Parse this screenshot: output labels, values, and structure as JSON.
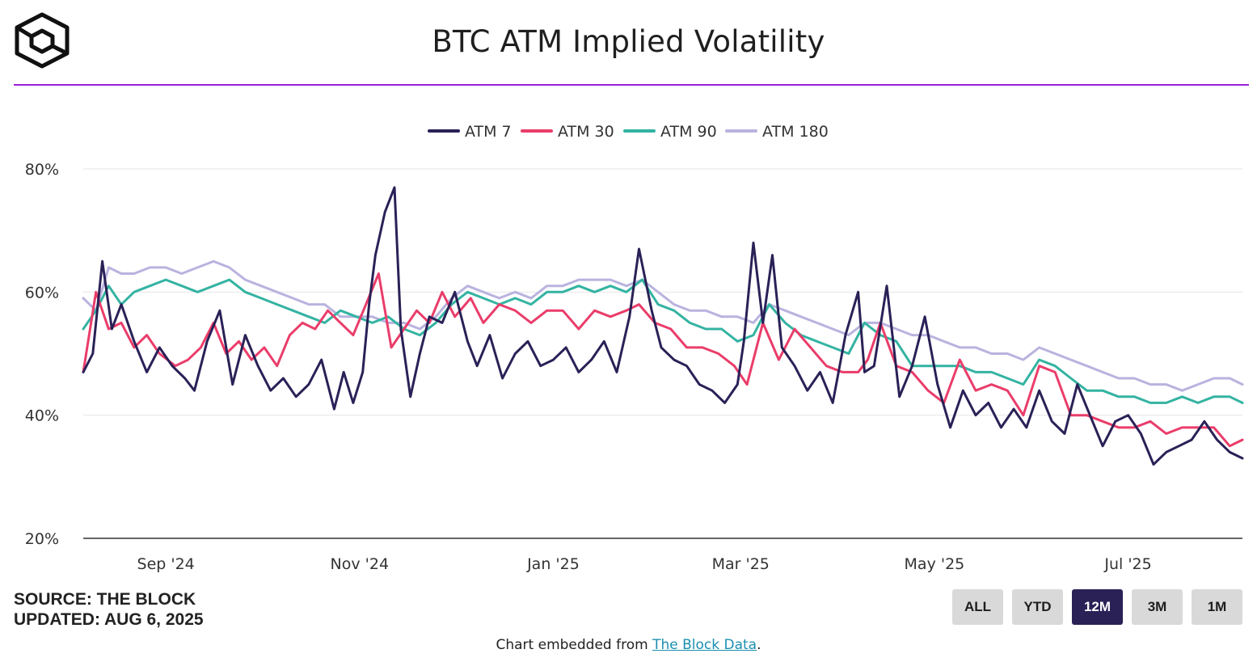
{
  "header": {
    "title": "BTC ATM Implied Volatility"
  },
  "footer": {
    "source": "SOURCE: THE BLOCK",
    "updated": "UPDATED: AUG 6, 2025",
    "embed_prefix": "Chart embedded from ",
    "embed_link": "The Block Data",
    "embed_suffix": "."
  },
  "range_buttons": [
    {
      "label": "ALL",
      "active": false
    },
    {
      "label": "YTD",
      "active": false
    },
    {
      "label": "12M",
      "active": true
    },
    {
      "label": "3M",
      "active": false
    },
    {
      "label": "1M",
      "active": false
    }
  ],
  "colors": {
    "brand_rule": "#9c1fd6",
    "active_button": "#2a2157"
  },
  "chart_data": {
    "type": "line",
    "title": "BTC ATM Implied Volatility",
    "xlabel": "",
    "ylabel": "",
    "ylim": [
      20,
      80
    ],
    "y_ticks": [
      "20%",
      "40%",
      "60%",
      "80%"
    ],
    "y_tick_values": [
      20,
      40,
      60,
      80
    ],
    "x_start": "2024-08-06",
    "x_end": "2025-08-06",
    "x_tick_labels": [
      "Sep '24",
      "Nov '24",
      "Jan '25",
      "Mar '25",
      "May '25",
      "Jul '25"
    ],
    "x_tick_dates": [
      "2024-09-01",
      "2024-11-01",
      "2025-01-01",
      "2025-03-01",
      "2025-05-01",
      "2025-07-01"
    ],
    "legend_position": "top-center",
    "grid": true,
    "series": [
      {
        "name": "ATM 7",
        "color": "#2a2157",
        "dates": [
          "2024-08-06",
          "2024-08-09",
          "2024-08-12",
          "2024-08-15",
          "2024-08-18",
          "2024-08-22",
          "2024-08-26",
          "2024-08-30",
          "2024-09-03",
          "2024-09-07",
          "2024-09-10",
          "2024-09-14",
          "2024-09-18",
          "2024-09-22",
          "2024-09-26",
          "2024-09-30",
          "2024-10-04",
          "2024-10-08",
          "2024-10-12",
          "2024-10-16",
          "2024-10-20",
          "2024-10-24",
          "2024-10-27",
          "2024-10-30",
          "2024-11-02",
          "2024-11-04",
          "2024-11-06",
          "2024-11-09",
          "2024-11-12",
          "2024-11-14",
          "2024-11-17",
          "2024-11-20",
          "2024-11-23",
          "2024-11-27",
          "2024-12-01",
          "2024-12-05",
          "2024-12-08",
          "2024-12-12",
          "2024-12-16",
          "2024-12-20",
          "2024-12-24",
          "2024-12-28",
          "2025-01-01",
          "2025-01-05",
          "2025-01-09",
          "2025-01-13",
          "2025-01-17",
          "2025-01-21",
          "2025-01-25",
          "2025-01-28",
          "2025-02-01",
          "2025-02-04",
          "2025-02-08",
          "2025-02-12",
          "2025-02-16",
          "2025-02-20",
          "2025-02-24",
          "2025-02-28",
          "2025-03-02",
          "2025-03-05",
          "2025-03-08",
          "2025-03-11",
          "2025-03-14",
          "2025-03-18",
          "2025-03-22",
          "2025-03-26",
          "2025-03-30",
          "2025-04-03",
          "2025-04-07",
          "2025-04-09",
          "2025-04-12",
          "2025-04-16",
          "2025-04-20",
          "2025-04-24",
          "2025-04-28",
          "2025-05-02",
          "2025-05-06",
          "2025-05-10",
          "2025-05-14",
          "2025-05-18",
          "2025-05-22",
          "2025-05-26",
          "2025-05-30",
          "2025-06-03",
          "2025-06-07",
          "2025-06-11",
          "2025-06-15",
          "2025-06-19",
          "2025-06-23",
          "2025-06-27",
          "2025-07-01",
          "2025-07-05",
          "2025-07-09",
          "2025-07-13",
          "2025-07-17",
          "2025-07-21",
          "2025-07-25",
          "2025-07-29",
          "2025-08-02",
          "2025-08-06"
        ],
        "values": [
          47,
          50,
          65,
          54,
          58,
          52,
          47,
          51,
          48,
          46,
          44,
          52,
          57,
          45,
          53,
          48,
          44,
          46,
          43,
          45,
          49,
          41,
          47,
          42,
          47,
          58,
          66,
          73,
          77,
          54,
          43,
          50,
          56,
          55,
          60,
          52,
          48,
          53,
          46,
          50,
          52,
          48,
          49,
          51,
          47,
          49,
          52,
          47,
          56,
          67,
          57,
          51,
          49,
          48,
          45,
          44,
          42,
          45,
          52,
          68,
          55,
          66,
          51,
          48,
          44,
          47,
          42,
          53,
          60,
          47,
          48,
          61,
          43,
          48,
          56,
          45,
          38,
          44,
          40,
          42,
          38,
          41,
          38,
          44,
          39,
          37,
          45,
          40,
          35,
          39,
          40,
          37,
          32,
          34,
          35,
          36,
          39,
          36,
          34,
          33
        ]
      },
      {
        "name": "ATM 30",
        "color": "#ea3d6a",
        "dates": [
          "2024-08-06",
          "2024-08-10",
          "2024-08-14",
          "2024-08-18",
          "2024-08-22",
          "2024-08-26",
          "2024-08-30",
          "2024-09-04",
          "2024-09-08",
          "2024-09-12",
          "2024-09-16",
          "2024-09-20",
          "2024-09-24",
          "2024-09-28",
          "2024-10-02",
          "2024-10-06",
          "2024-10-10",
          "2024-10-14",
          "2024-10-18",
          "2024-10-22",
          "2024-10-26",
          "2024-10-30",
          "2024-11-03",
          "2024-11-07",
          "2024-11-11",
          "2024-11-15",
          "2024-11-19",
          "2024-11-23",
          "2024-11-27",
          "2024-12-01",
          "2024-12-06",
          "2024-12-10",
          "2024-12-15",
          "2024-12-20",
          "2024-12-25",
          "2024-12-30",
          "2025-01-04",
          "2025-01-09",
          "2025-01-14",
          "2025-01-19",
          "2025-01-24",
          "2025-01-28",
          "2025-02-02",
          "2025-02-07",
          "2025-02-12",
          "2025-02-17",
          "2025-02-22",
          "2025-02-27",
          "2025-03-03",
          "2025-03-08",
          "2025-03-13",
          "2025-03-18",
          "2025-03-23",
          "2025-03-28",
          "2025-04-02",
          "2025-04-07",
          "2025-04-10",
          "2025-04-14",
          "2025-04-19",
          "2025-04-24",
          "2025-04-29",
          "2025-05-04",
          "2025-05-09",
          "2025-05-14",
          "2025-05-19",
          "2025-05-24",
          "2025-05-29",
          "2025-06-03",
          "2025-06-08",
          "2025-06-13",
          "2025-06-18",
          "2025-06-23",
          "2025-06-28",
          "2025-07-03",
          "2025-07-08",
          "2025-07-13",
          "2025-07-18",
          "2025-07-23",
          "2025-07-28",
          "2025-08-02",
          "2025-08-06"
        ],
        "values": [
          47,
          60,
          54,
          55,
          51,
          53,
          50,
          48,
          49,
          51,
          55,
          50,
          52,
          49,
          51,
          48,
          53,
          55,
          54,
          57,
          55,
          53,
          58,
          63,
          51,
          54,
          57,
          55,
          60,
          56,
          59,
          55,
          58,
          57,
          55,
          57,
          57,
          54,
          57,
          56,
          57,
          58,
          55,
          54,
          51,
          51,
          50,
          48,
          45,
          55,
          49,
          54,
          51,
          48,
          47,
          47,
          49,
          55,
          48,
          47,
          44,
          42,
          49,
          44,
          45,
          44,
          40,
          48,
          47,
          40,
          40,
          39,
          38,
          38,
          39,
          37,
          38,
          38,
          38,
          35,
          36
        ]
      },
      {
        "name": "ATM 90",
        "color": "#34b3a2",
        "dates": [
          "2024-08-06",
          "2024-08-10",
          "2024-08-14",
          "2024-08-18",
          "2024-08-22",
          "2024-08-27",
          "2024-09-01",
          "2024-09-06",
          "2024-09-11",
          "2024-09-16",
          "2024-09-21",
          "2024-09-26",
          "2024-10-01",
          "2024-10-06",
          "2024-10-11",
          "2024-10-16",
          "2024-10-21",
          "2024-10-26",
          "2024-10-31",
          "2024-11-05",
          "2024-11-10",
          "2024-11-15",
          "2024-11-20",
          "2024-11-25",
          "2024-11-30",
          "2024-12-05",
          "2024-12-10",
          "2024-12-15",
          "2024-12-20",
          "2024-12-25",
          "2024-12-30",
          "2025-01-04",
          "2025-01-09",
          "2025-01-14",
          "2025-01-19",
          "2025-01-24",
          "2025-01-29",
          "2025-02-03",
          "2025-02-08",
          "2025-02-13",
          "2025-02-18",
          "2025-02-23",
          "2025-02-28",
          "2025-03-05",
          "2025-03-10",
          "2025-03-15",
          "2025-03-20",
          "2025-03-25",
          "2025-03-30",
          "2025-04-04",
          "2025-04-09",
          "2025-04-14",
          "2025-04-19",
          "2025-04-24",
          "2025-04-29",
          "2025-05-04",
          "2025-05-09",
          "2025-05-14",
          "2025-05-19",
          "2025-05-24",
          "2025-05-29",
          "2025-06-03",
          "2025-06-08",
          "2025-06-13",
          "2025-06-18",
          "2025-06-23",
          "2025-06-28",
          "2025-07-03",
          "2025-07-08",
          "2025-07-13",
          "2025-07-18",
          "2025-07-23",
          "2025-07-28",
          "2025-08-02",
          "2025-08-06"
        ],
        "values": [
          54,
          57,
          61,
          58,
          60,
          61,
          62,
          61,
          60,
          61,
          62,
          60,
          59,
          58,
          57,
          56,
          55,
          57,
          56,
          55,
          56,
          54,
          53,
          55,
          58,
          60,
          59,
          58,
          59,
          58,
          60,
          60,
          61,
          60,
          61,
          60,
          62,
          58,
          57,
          55,
          54,
          54,
          52,
          53,
          58,
          55,
          53,
          52,
          51,
          50,
          55,
          53,
          52,
          48,
          48,
          48,
          48,
          47,
          47,
          46,
          45,
          49,
          48,
          46,
          44,
          44,
          43,
          43,
          42,
          42,
          43,
          42,
          43,
          43,
          42
        ]
      },
      {
        "name": "ATM 180",
        "color": "#b9b3df",
        "dates": [
          "2024-08-06",
          "2024-08-10",
          "2024-08-14",
          "2024-08-18",
          "2024-08-22",
          "2024-08-27",
          "2024-09-01",
          "2024-09-06",
          "2024-09-11",
          "2024-09-16",
          "2024-09-21",
          "2024-09-26",
          "2024-10-01",
          "2024-10-06",
          "2024-10-11",
          "2024-10-16",
          "2024-10-21",
          "2024-10-26",
          "2024-10-31",
          "2024-11-05",
          "2024-11-10",
          "2024-11-15",
          "2024-11-20",
          "2024-11-25",
          "2024-11-30",
          "2024-12-05",
          "2024-12-10",
          "2024-12-15",
          "2024-12-20",
          "2024-12-25",
          "2024-12-30",
          "2025-01-04",
          "2025-01-09",
          "2025-01-14",
          "2025-01-19",
          "2025-01-24",
          "2025-01-29",
          "2025-02-03",
          "2025-02-08",
          "2025-02-13",
          "2025-02-18",
          "2025-02-23",
          "2025-02-28",
          "2025-03-05",
          "2025-03-10",
          "2025-03-15",
          "2025-03-20",
          "2025-03-25",
          "2025-03-30",
          "2025-04-04",
          "2025-04-09",
          "2025-04-14",
          "2025-04-19",
          "2025-04-24",
          "2025-04-29",
          "2025-05-04",
          "2025-05-09",
          "2025-05-14",
          "2025-05-19",
          "2025-05-24",
          "2025-05-29",
          "2025-06-03",
          "2025-06-08",
          "2025-06-13",
          "2025-06-18",
          "2025-06-23",
          "2025-06-28",
          "2025-07-03",
          "2025-07-08",
          "2025-07-13",
          "2025-07-18",
          "2025-07-23",
          "2025-07-28",
          "2025-08-02",
          "2025-08-06"
        ],
        "values": [
          59,
          57,
          64,
          63,
          63,
          64,
          64,
          63,
          64,
          65,
          64,
          62,
          61,
          60,
          59,
          58,
          58,
          56,
          56,
          56,
          55,
          55,
          54,
          56,
          59,
          61,
          60,
          59,
          60,
          59,
          61,
          61,
          62,
          62,
          62,
          61,
          62,
          60,
          58,
          57,
          57,
          56,
          56,
          55,
          58,
          57,
          56,
          55,
          54,
          53,
          55,
          55,
          54,
          53,
          53,
          52,
          51,
          51,
          50,
          50,
          49,
          51,
          50,
          49,
          48,
          47,
          46,
          46,
          45,
          45,
          44,
          45,
          46,
          46,
          45
        ]
      }
    ]
  }
}
